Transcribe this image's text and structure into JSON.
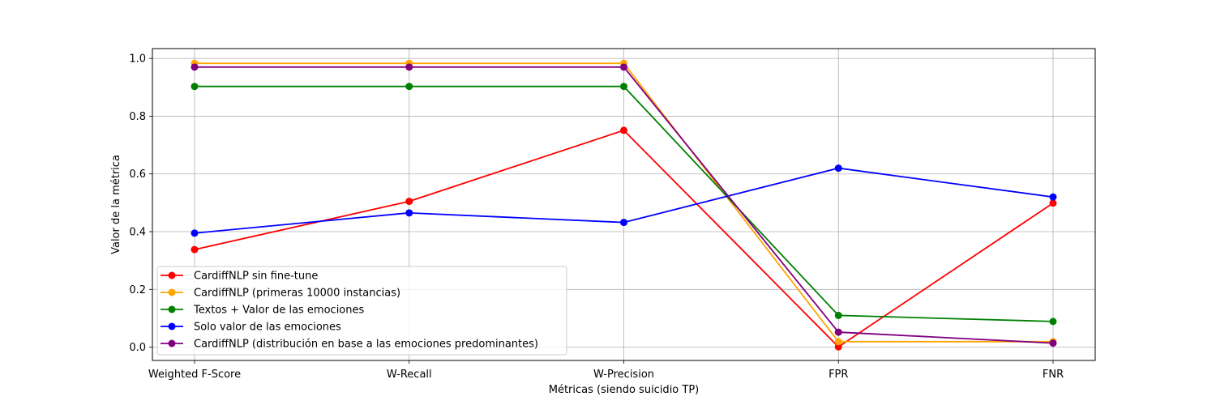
{
  "chart_data": {
    "type": "line",
    "title": "",
    "xlabel": "Métricas (siendo suicidio TP)",
    "ylabel": "Valor de la métrica",
    "categories": [
      "Weighted F-Score",
      "W-Recall",
      "W-Precision",
      "FPR",
      "FNR"
    ],
    "ylim": [
      -0.046,
      1.034
    ],
    "yticks": [
      0.0,
      0.2,
      0.4,
      0.6,
      0.8,
      1.0
    ],
    "ytick_labels": [
      "0.0",
      "0.2",
      "0.4",
      "0.6",
      "0.8",
      "1.0"
    ],
    "grid": true,
    "legend_position": "lower-left",
    "series": [
      {
        "name": "CardiffNLP sin fine-tune",
        "color": "#ff0000",
        "values": [
          0.338,
          0.505,
          0.751,
          0.001,
          0.499
        ]
      },
      {
        "name": "CardiffNLP (primeras 10000 instancias)",
        "color": "#ffa500",
        "values": [
          0.983,
          0.983,
          0.983,
          0.019,
          0.019
        ]
      },
      {
        "name": "Textos + Valor de las emociones",
        "color": "#008000",
        "values": [
          0.903,
          0.903,
          0.903,
          0.11,
          0.089
        ]
      },
      {
        "name": "Solo valor de las emociones",
        "color": "#0000ff",
        "values": [
          0.395,
          0.465,
          0.432,
          0.62,
          0.52
        ]
      },
      {
        "name": "CardiffNLP (distribución en base a las emociones predominantes)",
        "color": "#800080",
        "values": [
          0.97,
          0.97,
          0.97,
          0.052,
          0.014
        ]
      }
    ]
  }
}
